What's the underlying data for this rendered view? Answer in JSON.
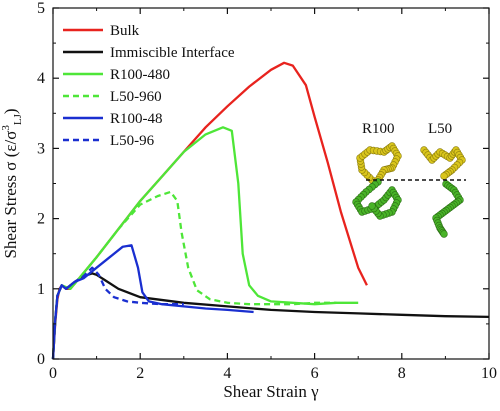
{
  "chart_data": {
    "type": "line",
    "title": "",
    "xlabel": "Shear Strain γ",
    "ylabel": "Shear Stress σ (ε/σ³LJ)",
    "ylabel_parts": {
      "main": "Shear Stress σ (ε/σ",
      "sup": "3",
      "sub": "LJ",
      "close": ")"
    },
    "xlim": [
      0,
      10
    ],
    "ylim": [
      0,
      5
    ],
    "xticks": [
      "0",
      "2",
      "4",
      "6",
      "8",
      "10"
    ],
    "yticks": [
      "0",
      "1",
      "2",
      "3",
      "4",
      "5"
    ],
    "grid": false,
    "legend_position": "top-left",
    "series": [
      {
        "name": "Bulk",
        "color": "#e8231e",
        "dash": "solid",
        "x": [
          0,
          0.05,
          0.1,
          0.15,
          0.2,
          0.3,
          0.4,
          0.6,
          1.0,
          1.5,
          2.0,
          2.5,
          3.0,
          3.5,
          4.0,
          4.5,
          5.0,
          5.3,
          5.5,
          5.8,
          6.0,
          6.3,
          6.6,
          7.0,
          7.2
        ],
        "y": [
          0,
          0.5,
          0.85,
          1.0,
          1.05,
          1.0,
          1.0,
          1.15,
          1.45,
          1.85,
          2.25,
          2.6,
          2.95,
          3.3,
          3.6,
          3.88,
          4.12,
          4.22,
          4.18,
          3.9,
          3.45,
          2.8,
          2.1,
          1.3,
          1.05
        ]
      },
      {
        "name": "Immiscible Interface",
        "color": "#111111",
        "dash": "solid",
        "x": [
          0,
          0.05,
          0.1,
          0.2,
          0.3,
          0.5,
          0.7,
          0.9,
          1.0,
          1.2,
          1.5,
          2.0,
          3.0,
          4.0,
          5.0,
          6.0,
          7.0,
          8.0,
          9.0,
          10.0
        ],
        "y": [
          0,
          0.55,
          0.9,
          1.05,
          1.0,
          1.1,
          1.18,
          1.22,
          1.2,
          1.12,
          1.0,
          0.88,
          0.8,
          0.75,
          0.7,
          0.67,
          0.65,
          0.63,
          0.61,
          0.6
        ]
      },
      {
        "name": "R100-480",
        "color": "#4ee638",
        "dash": "solid",
        "x": [
          0,
          0.05,
          0.1,
          0.2,
          0.4,
          0.6,
          1.0,
          1.5,
          2.0,
          2.5,
          3.0,
          3.5,
          3.9,
          4.1,
          4.25,
          4.35,
          4.5,
          4.7,
          5.0,
          5.5,
          6.0,
          6.5,
          7.0
        ],
        "y": [
          0,
          0.55,
          0.9,
          1.05,
          1.0,
          1.15,
          1.45,
          1.85,
          2.25,
          2.6,
          2.95,
          3.2,
          3.3,
          3.25,
          2.5,
          1.5,
          1.05,
          0.9,
          0.82,
          0.8,
          0.78,
          0.8,
          0.8
        ]
      },
      {
        "name": "L50-960",
        "color": "#4ee638",
        "dash": "dashed",
        "x": [
          0,
          0.05,
          0.1,
          0.2,
          0.4,
          0.6,
          1.0,
          1.5,
          2.0,
          2.4,
          2.7,
          2.85,
          2.95,
          3.1,
          3.3,
          3.6,
          4.0,
          4.5,
          5.0,
          5.5,
          6.0,
          6.5
        ],
        "y": [
          0,
          0.55,
          0.9,
          1.05,
          1.0,
          1.15,
          1.45,
          1.85,
          2.2,
          2.32,
          2.38,
          2.25,
          1.8,
          1.3,
          0.98,
          0.85,
          0.8,
          0.78,
          0.78,
          0.78,
          0.8,
          0.8
        ]
      },
      {
        "name": "R100-48",
        "color": "#1a2fd0",
        "dash": "solid",
        "x": [
          0,
          0.05,
          0.1,
          0.2,
          0.3,
          0.5,
          0.7,
          1.0,
          1.3,
          1.6,
          1.8,
          1.95,
          2.05,
          2.2,
          2.5,
          3.0,
          3.5,
          4.0,
          4.6
        ],
        "y": [
          0,
          0.55,
          0.9,
          1.05,
          1.0,
          1.1,
          1.15,
          1.3,
          1.45,
          1.6,
          1.62,
          1.3,
          0.95,
          0.82,
          0.78,
          0.75,
          0.72,
          0.7,
          0.67
        ]
      },
      {
        "name": "L50-96",
        "color": "#1a2fd0",
        "dash": "dashed",
        "x": [
          0,
          0.05,
          0.1,
          0.2,
          0.3,
          0.5,
          0.7,
          0.9,
          1.05,
          1.2,
          1.4,
          1.7,
          2.0,
          2.5,
          3.0
        ],
        "y": [
          0,
          0.55,
          0.9,
          1.05,
          1.0,
          1.1,
          1.18,
          1.3,
          1.2,
          1.0,
          0.88,
          0.82,
          0.8,
          0.78,
          0.78
        ]
      }
    ],
    "inset": {
      "labels": [
        "R100",
        "L50"
      ]
    }
  }
}
